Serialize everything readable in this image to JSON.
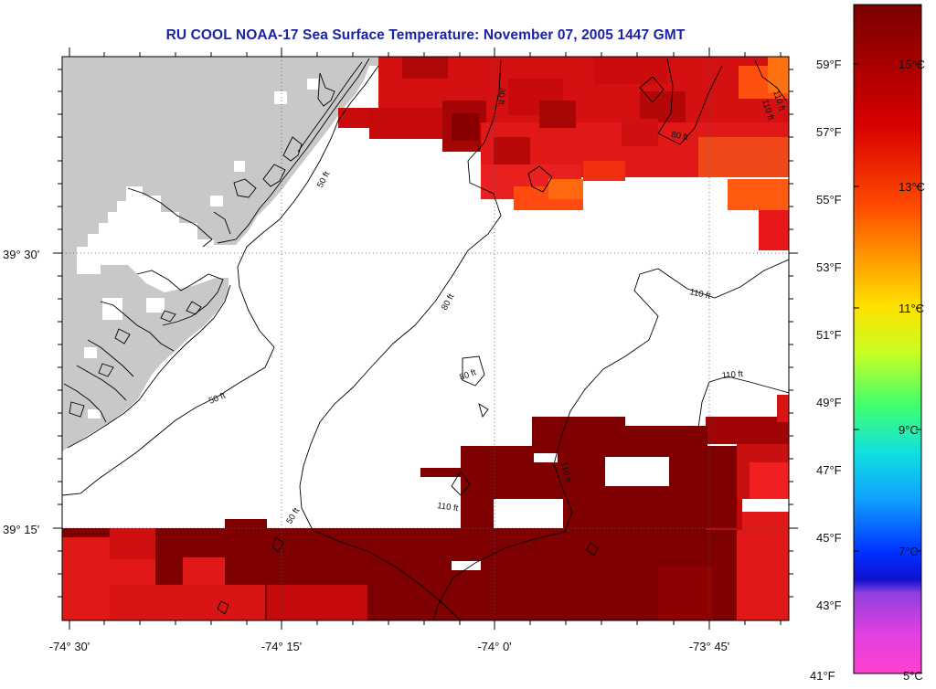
{
  "title": "RU COOL  NOAA-17  Sea Surface Temperature:  November 07, 2005 1447 GMT",
  "axes": {
    "x_ticks": [
      "-74° 30'",
      "-74° 15'",
      "-74° 0'",
      "-73° 45'"
    ],
    "y_ticks": [
      "39° 30'",
      "39° 15'"
    ]
  },
  "colorbar": {
    "fahrenheit": [
      "59°F",
      "57°F",
      "55°F",
      "53°F",
      "51°F",
      "49°F",
      "47°F",
      "45°F",
      "43°F",
      "41°F"
    ],
    "celsius": [
      "15°C",
      "13°C",
      "11°C",
      "9°C",
      "7°C",
      "5°C"
    ]
  },
  "contour_labels": [
    "50 ft",
    "50 ft",
    "50 ft",
    "80 ft",
    "80 ft",
    "80 ft",
    "80 ft",
    "110 ft",
    "110 ft",
    "110 ft",
    "110 ft",
    "110 ft",
    "110 ft"
  ],
  "colors": {
    "land": "#c8c8c8",
    "title": "#1a22a8",
    "sst_dark": "#7a0000",
    "sst_red": "#e01010",
    "sst_orange": "#ff6a10"
  }
}
